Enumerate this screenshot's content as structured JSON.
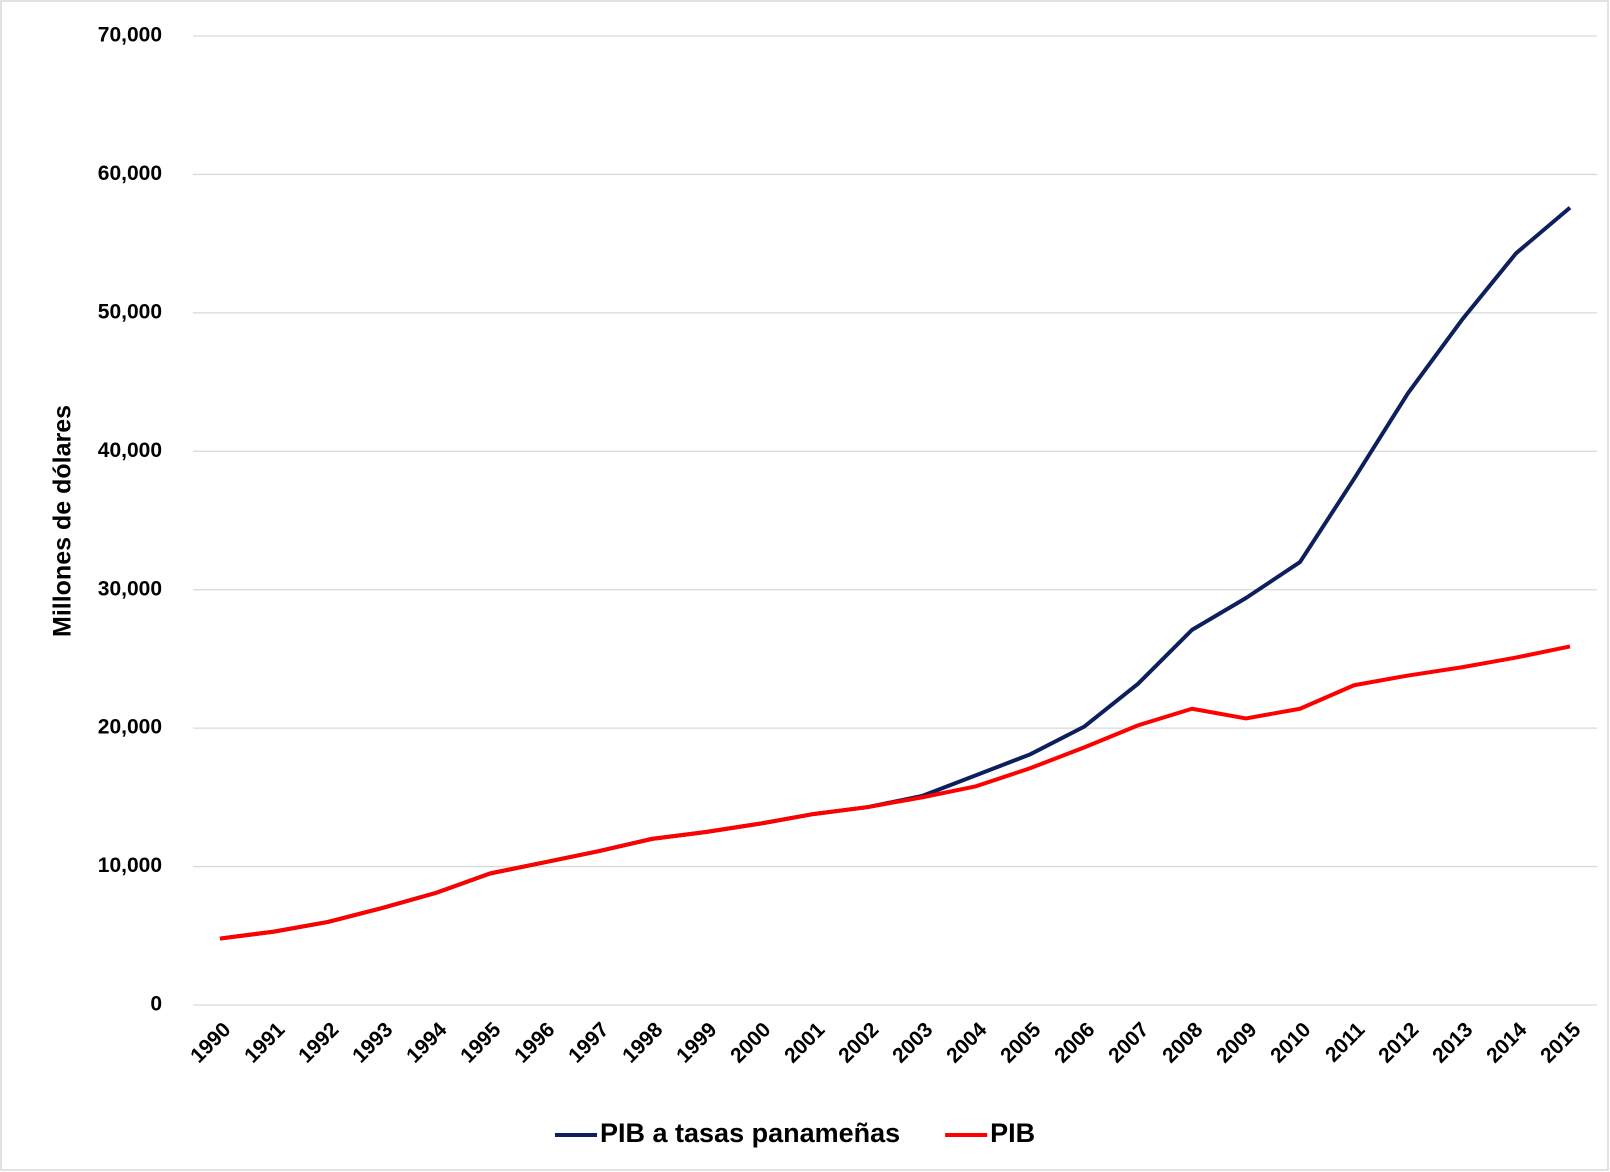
{
  "chart_data": {
    "type": "line",
    "y_label": "Millones de dólares",
    "categories": [
      "1990",
      "1991",
      "1992",
      "1993",
      "1994",
      "1995",
      "1996",
      "1997",
      "1998",
      "1999",
      "2000",
      "2001",
      "2002",
      "2003",
      "2004",
      "2005",
      "2006",
      "2007",
      "2008",
      "2009",
      "2010",
      "2011",
      "2012",
      "2013",
      "2014",
      "2015"
    ],
    "series": [
      {
        "name": "PIB a tasas panameñas",
        "color": "#0d1f5c",
        "values": [
          4800,
          5300,
          6000,
          7000,
          8100,
          9500,
          10300,
          11100,
          12000,
          12500,
          13100,
          13800,
          14300,
          15100,
          16600,
          18100,
          20100,
          23200,
          27100,
          29400,
          32000,
          38000,
          44200,
          49500,
          54300,
          57600
        ]
      },
      {
        "name": "PIB",
        "color": "#ff0000",
        "values": [
          4800,
          5300,
          6000,
          7000,
          8100,
          9500,
          10300,
          11100,
          12000,
          12500,
          13100,
          13800,
          14300,
          15000,
          15800,
          17100,
          18600,
          20200,
          21400,
          20700,
          21400,
          23100,
          23800,
          24400,
          25100,
          25900
        ]
      }
    ],
    "ylim": [
      0,
      70000
    ],
    "yticks": [
      {
        "value": 0,
        "label": "0"
      },
      {
        "value": 10000,
        "label": "10,000"
      },
      {
        "value": 20000,
        "label": "20,000"
      },
      {
        "value": 30000,
        "label": "30,000"
      },
      {
        "value": 40000,
        "label": "40,000"
      },
      {
        "value": 50000,
        "label": "50,000"
      },
      {
        "value": 60000,
        "label": "60,000"
      },
      {
        "value": 70000,
        "label": "70,000"
      }
    ],
    "grid": true,
    "legend": "bottom"
  }
}
